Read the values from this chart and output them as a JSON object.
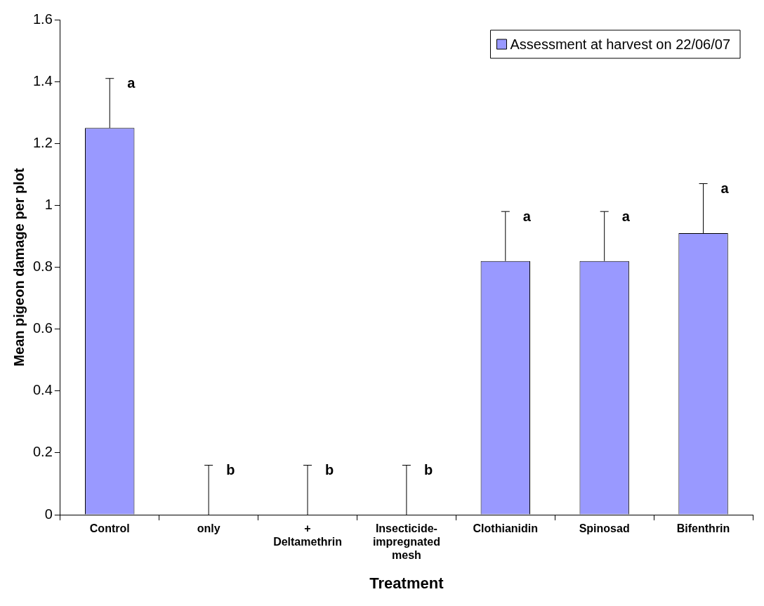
{
  "chart_data": {
    "type": "bar",
    "xlabel": "Treatment",
    "ylabel": "Mean pigeon damage per plot",
    "categories": [
      "Control",
      "only",
      "+ Deltamethrin",
      "Insecticide-impregnated mesh",
      "Clothianidin",
      "Spinosad",
      "Bifenthrin"
    ],
    "series": [
      {
        "name": "Assessment at harvest on 22/06/07",
        "color": "#9999ff",
        "values": [
          1.25,
          0,
          0,
          0,
          0.82,
          0.82,
          0.91
        ],
        "errors": [
          [
            1.25,
            1.41
          ],
          [
            0,
            0.16
          ],
          [
            0,
            0.16
          ],
          [
            0,
            0.16
          ],
          [
            0.82,
            0.98
          ],
          [
            0.82,
            0.98
          ],
          [
            0.91,
            1.07
          ]
        ]
      }
    ],
    "ylim": [
      0,
      1.6
    ],
    "yticks": [
      0,
      {
        "value": 0.2,
        "label": "0.2"
      },
      {
        "value": 0.4,
        "label": "0.4"
      },
      {
        "value": 0.6,
        "label": "0.6"
      },
      {
        "value": 0.8,
        "label": "0.8"
      },
      1,
      {
        "value": 1.2,
        "label": "1.2"
      },
      {
        "value": 1.4,
        "label": "1.4"
      },
      {
        "value": 1.6,
        "label": "1.6"
      }
    ],
    "annotations": [
      {
        "text": "a",
        "x": "Control",
        "y": 1.41
      },
      {
        "text": "b",
        "x": "only",
        "y": 0.16
      },
      {
        "text": "b",
        "x": "+ Deltamethrin",
        "y": 0.16
      },
      {
        "text": "b",
        "x": "Insecticide-impregnated mesh",
        "y": 0.16
      },
      {
        "text": "a",
        "x": "Clothianidin",
        "y": 0.98
      },
      {
        "text": "a",
        "x": "Spinosad",
        "y": 0.98
      },
      {
        "text": "a",
        "x": "Bifenthrin",
        "y": 1.07
      }
    ],
    "grid": false,
    "legend": "top right"
  }
}
